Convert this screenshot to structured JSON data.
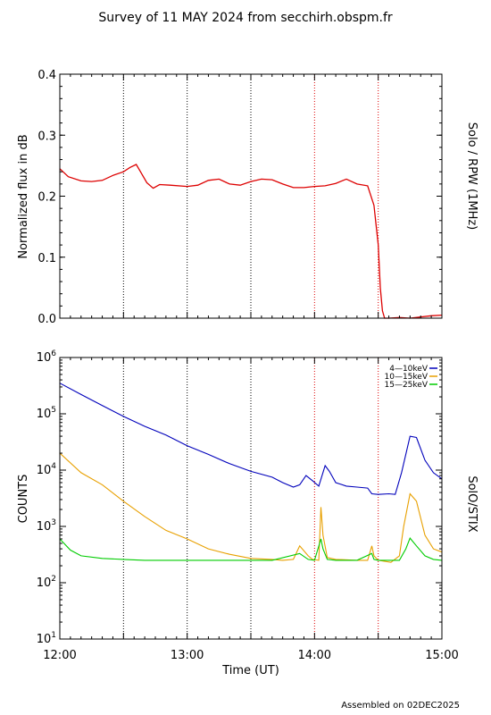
{
  "title": "Survey of 11 MAY 2024 from secchirh.obspm.fr",
  "footer": "Assembled on 02DEC2025",
  "colors": {
    "red": "#dd0000",
    "blue": "#0000bb",
    "orange": "#e8a000",
    "green": "#00cc00",
    "vline_black": "#000000",
    "vline_red": "#dd0000"
  },
  "chart_data": [
    {
      "type": "line",
      "ylabel": "Normalized flux in dB",
      "right_label": "Solo / RPW (1MHz)",
      "xlim": [
        "12:00",
        "15:00"
      ],
      "ylim": [
        0.0,
        0.4
      ],
      "yticks": [
        "0.0",
        "0.1",
        "0.2",
        "0.3",
        "0.4"
      ],
      "vertical_lines": [
        {
          "time": "12:30",
          "color": "black"
        },
        {
          "time": "13:00",
          "color": "black"
        },
        {
          "time": "13:30",
          "color": "black"
        },
        {
          "time": "14:00",
          "color": "red"
        },
        {
          "time": "14:30",
          "color": "red"
        }
      ],
      "series": [
        {
          "color": "red",
          "x": [
            "12:00",
            "12:04",
            "12:10",
            "12:15",
            "12:20",
            "12:25",
            "12:30",
            "12:33",
            "12:36",
            "12:38",
            "12:41",
            "12:44",
            "12:47",
            "12:52",
            "13:00",
            "13:05",
            "13:10",
            "13:15",
            "13:20",
            "13:25",
            "13:30",
            "13:35",
            "13:40",
            "13:45",
            "13:50",
            "13:55",
            "14:00",
            "14:05",
            "14:10",
            "14:15",
            "14:20",
            "14:25",
            "14:28",
            "14:30",
            "14:31",
            "14:32",
            "14:33",
            "14:35",
            "14:40",
            "14:45",
            "14:50",
            "14:55",
            "15:00"
          ],
          "values": [
            0.245,
            0.232,
            0.225,
            0.224,
            0.226,
            0.234,
            0.24,
            0.247,
            0.252,
            0.24,
            0.222,
            0.213,
            0.219,
            0.218,
            0.216,
            0.218,
            0.226,
            0.228,
            0.22,
            0.218,
            0.224,
            0.228,
            0.227,
            0.22,
            0.214,
            0.214,
            0.216,
            0.217,
            0.221,
            0.228,
            0.22,
            0.217,
            0.185,
            0.12,
            0.05,
            0.012,
            0.0,
            0.0,
            0.001,
            0.0,
            0.002,
            0.004,
            0.005
          ]
        }
      ]
    },
    {
      "type": "line",
      "ylabel": "COUNTS",
      "right_label": "SolO/STIX",
      "xlabel": "Time (UT)",
      "xticks": [
        "12:00",
        "13:00",
        "14:00",
        "15:00"
      ],
      "xlim": [
        "12:00",
        "15:00"
      ],
      "ylim": [
        10,
        1000000
      ],
      "yscale": "log",
      "yticks": [
        "10^1",
        "10^2",
        "10^3",
        "10^4",
        "10^5",
        "10^6"
      ],
      "legend": "top-right",
      "vertical_lines": [
        {
          "time": "12:30",
          "color": "black"
        },
        {
          "time": "13:00",
          "color": "black"
        },
        {
          "time": "13:30",
          "color": "black"
        },
        {
          "time": "14:00",
          "color": "red"
        },
        {
          "time": "14:30",
          "color": "red"
        }
      ],
      "series": [
        {
          "name": "4—10keV",
          "color": "blue",
          "x": [
            "12:00",
            "12:10",
            "12:20",
            "12:30",
            "12:40",
            "12:50",
            "13:00",
            "13:10",
            "13:20",
            "13:30",
            "13:40",
            "13:45",
            "13:50",
            "13:53",
            "13:56",
            "13:59",
            "14:02",
            "14:05",
            "14:07",
            "14:10",
            "14:15",
            "14:20",
            "14:25",
            "14:27",
            "14:30",
            "14:35",
            "14:38",
            "14:41",
            "14:45",
            "14:48",
            "14:52",
            "14:56",
            "15:00"
          ],
          "values": [
            350000,
            220000,
            140000,
            90000,
            60000,
            42000,
            27000,
            19000,
            13000,
            9500,
            7500,
            6000,
            5000,
            5500,
            8000,
            6500,
            5200,
            12000,
            9500,
            6000,
            5200,
            5000,
            4800,
            3800,
            3700,
            3800,
            3700,
            9000,
            40000,
            38000,
            15000,
            9000,
            7000
          ]
        },
        {
          "name": "10—15keV",
          "color": "orange",
          "x": [
            "12:00",
            "12:10",
            "12:20",
            "12:30",
            "12:40",
            "12:50",
            "13:00",
            "13:10",
            "13:20",
            "13:30",
            "13:40",
            "13:45",
            "13:50",
            "13:53",
            "13:57",
            "13:59",
            "14:02",
            "14:03",
            "14:04",
            "14:06",
            "14:10",
            "14:20",
            "14:25",
            "14:27",
            "14:28",
            "14:30",
            "14:36",
            "14:40",
            "14:42",
            "14:45",
            "14:48",
            "14:52",
            "14:56",
            "15:00"
          ],
          "values": [
            20000,
            9000,
            5500,
            2800,
            1500,
            850,
            600,
            400,
            320,
            270,
            260,
            250,
            260,
            450,
            300,
            260,
            250,
            2200,
            700,
            280,
            260,
            250,
            250,
            450,
            300,
            250,
            230,
            300,
            1000,
            3800,
            2800,
            700,
            400,
            350
          ]
        },
        {
          "name": "15—25keV",
          "color": "green",
          "x": [
            "12:00",
            "12:05",
            "12:10",
            "12:20",
            "12:30",
            "12:40",
            "12:50",
            "13:00",
            "13:20",
            "13:40",
            "13:53",
            "13:57",
            "14:00",
            "14:03",
            "14:04",
            "14:06",
            "14:10",
            "14:20",
            "14:27",
            "14:28",
            "14:30",
            "14:40",
            "14:43",
            "14:45",
            "14:48",
            "14:52",
            "14:56",
            "15:00"
          ],
          "values": [
            600,
            380,
            300,
            270,
            260,
            250,
            250,
            250,
            250,
            250,
            330,
            260,
            250,
            600,
            400,
            260,
            250,
            250,
            330,
            260,
            250,
            250,
            400,
            620,
            450,
            300,
            260,
            250
          ]
        }
      ]
    }
  ]
}
